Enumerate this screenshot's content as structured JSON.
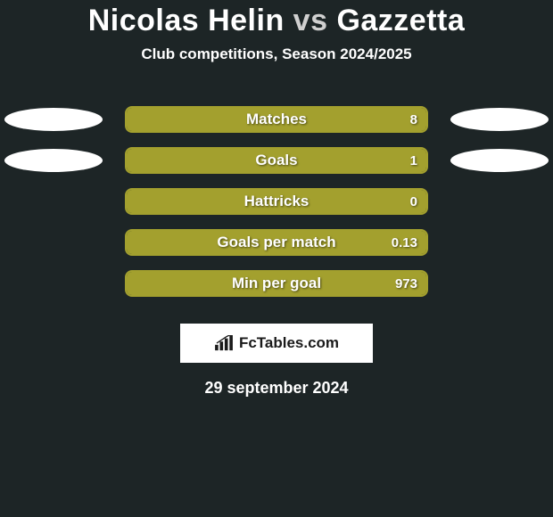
{
  "background_color": "#1d2526",
  "title": {
    "player1": "Nicolas Helin",
    "vs": "vs",
    "player2": "Gazzetta",
    "color": "#ffffff",
    "fontsize": 34
  },
  "subtitle": {
    "text": "Club competitions, Season 2024/2025",
    "color": "#ffffff",
    "fontsize": 17
  },
  "oval_color": "#ffffff",
  "bar_border_color": "#a3a02e",
  "bar_fill_color": "#a3a02e",
  "bar_text_color": "#ffffff",
  "stats": [
    {
      "label": "Matches",
      "right_value": "8",
      "right_fill_pct": 100,
      "show_ovals": true
    },
    {
      "label": "Goals",
      "right_value": "1",
      "right_fill_pct": 100,
      "show_ovals": true
    },
    {
      "label": "Hattricks",
      "right_value": "0",
      "right_fill_pct": 100,
      "show_ovals": false
    },
    {
      "label": "Goals per match",
      "right_value": "0.13",
      "right_fill_pct": 100,
      "show_ovals": false
    },
    {
      "label": "Min per goal",
      "right_value": "973",
      "right_fill_pct": 100,
      "show_ovals": false
    }
  ],
  "brand": {
    "text": "FcTables.com",
    "box_bg": "#ffffff",
    "text_color": "#1a1a1a"
  },
  "date": {
    "text": "29 september 2024",
    "color": "#ffffff",
    "fontsize": 18
  }
}
